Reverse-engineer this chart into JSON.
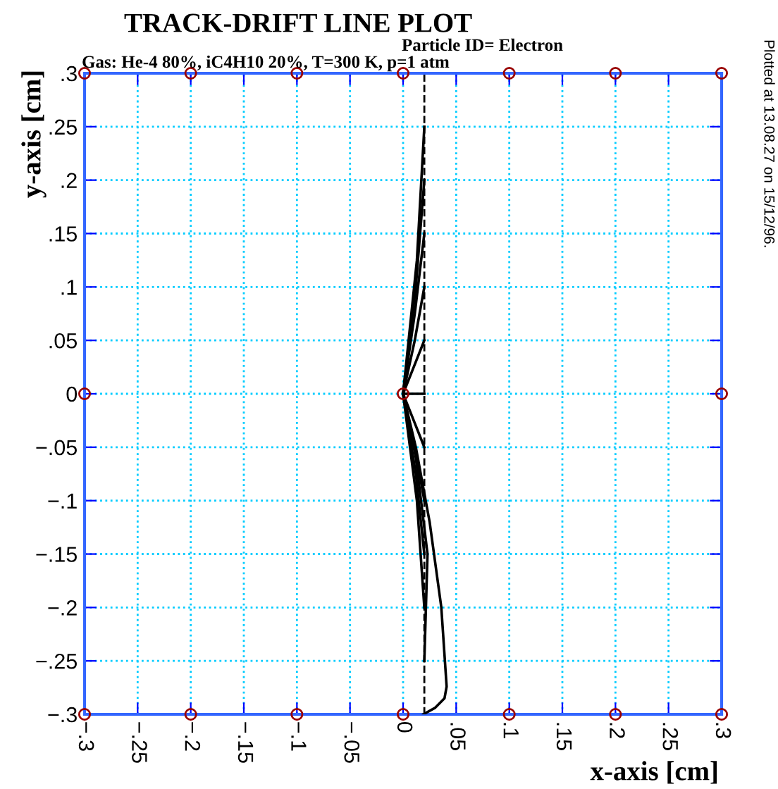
{
  "chart_data": {
    "type": "line",
    "title": "TRACK-DRIFT LINE PLOT",
    "subtitle": "Gas: He-4 80%, iC4H10 20%, T=300 K, p=1 atm",
    "xlabel": "x-axis [cm]",
    "ylabel": "y-axis [cm]",
    "annotations": [
      "Particle ID= Electron",
      "Plotted at 13.08.27 on 15/12/96."
    ],
    "xlim": [
      -0.3,
      0.3
    ],
    "ylim": [
      -0.3,
      0.3
    ],
    "xticks": [
      {
        "value": -0.3,
        "label": "−.3"
      },
      {
        "value": -0.25,
        "label": "−.25"
      },
      {
        "value": -0.2,
        "label": "−.2"
      },
      {
        "value": -0.15,
        "label": "−.15"
      },
      {
        "value": -0.1,
        "label": "−.1"
      },
      {
        "value": -0.05,
        "label": "−.05"
      },
      0,
      {
        "value": 0.05,
        "label": ".05"
      },
      {
        "value": 0.1,
        "label": ".1"
      },
      {
        "value": 0.15,
        "label": ".15"
      },
      {
        "value": 0.2,
        "label": ".2"
      },
      {
        "value": 0.25,
        "label": ".25"
      },
      {
        "value": 0.3,
        "label": ".3"
      }
    ],
    "yticks": [
      {
        "value": -0.3,
        "label": "−.3"
      },
      {
        "value": -0.25,
        "label": "−.25"
      },
      {
        "value": -0.2,
        "label": "−.2"
      },
      {
        "value": -0.15,
        "label": "−.15"
      },
      {
        "value": -0.1,
        "label": "−.1"
      },
      {
        "value": -0.05,
        "label": "−.05"
      },
      0,
      {
        "value": 0.05,
        "label": ".05"
      },
      {
        "value": 0.1,
        "label": ".1"
      },
      {
        "value": 0.15,
        "label": ".15"
      },
      {
        "value": 0.2,
        "label": ".2"
      },
      {
        "value": 0.25,
        "label": ".25"
      },
      {
        "value": 0.3,
        "label": ".3"
      }
    ],
    "grid": true,
    "ref_lines": [
      {
        "axis": "x",
        "value": 0.02,
        "color": "#000000",
        "line_style": "dashed"
      }
    ],
    "series": [
      {
        "color": "#000000",
        "x": [
          0.02,
          0.013,
          0
        ],
        "values": [
          0.25,
          0.125,
          0
        ]
      },
      {
        "color": "#000000",
        "x": [
          0.02,
          0.012,
          0
        ],
        "values": [
          0.2,
          0.1,
          0
        ]
      },
      {
        "color": "#000000",
        "x": [
          0.02,
          0.011,
          0
        ],
        "values": [
          0.15,
          0.075,
          0
        ]
      },
      {
        "color": "#000000",
        "x": [
          0.02,
          0.011,
          0
        ],
        "values": [
          0.1,
          0.05,
          0
        ]
      },
      {
        "color": "#000000",
        "x": [
          0.02,
          0.01,
          0
        ],
        "values": [
          0.05,
          0.025,
          0
        ]
      },
      {
        "color": "#000000",
        "x": [
          0.02,
          0
        ],
        "values": [
          0,
          0
        ]
      },
      {
        "color": "#000000",
        "x": [
          0.02,
          0.01,
          0
        ],
        "values": [
          -0.05,
          -0.025,
          0
        ]
      },
      {
        "color": "#000000",
        "x": [
          0.02,
          0.011,
          0
        ],
        "values": [
          -0.1,
          -0.05,
          0
        ]
      },
      {
        "color": "#000000",
        "x": [
          0.02,
          0.012,
          0
        ],
        "values": [
          -0.15,
          -0.075,
          0
        ]
      },
      {
        "color": "#000000",
        "x": [
          0.02,
          0.013,
          0
        ],
        "values": [
          -0.2,
          -0.1,
          0
        ]
      },
      {
        "color": "#000000",
        "x": [
          0.02,
          0.023,
          0.012,
          0
        ],
        "values": [
          -0.25,
          -0.15,
          -0.06,
          0
        ]
      },
      {
        "color": "#000000",
        "x": [
          0.019,
          0.03,
          0.039,
          0.041,
          0.036,
          0.025,
          0.012,
          0
        ],
        "values": [
          -0.3,
          -0.294,
          -0.285,
          -0.274,
          -0.2,
          -0.12,
          -0.05,
          0
        ]
      },
      {
        "type": "scatter",
        "color": "#990000",
        "marker": "circle",
        "x": [
          -0.3,
          -0.2,
          -0.1,
          0,
          0.1,
          0.2,
          0.3,
          -0.3,
          -0.2,
          -0.1,
          0,
          0.1,
          0.2,
          0.3,
          -0.3,
          0,
          0.3
        ],
        "values": [
          0.3,
          0.3,
          0.3,
          0.3,
          0.3,
          0.3,
          0.3,
          -0.3,
          -0.3,
          -0.3,
          -0.3,
          -0.3,
          -0.3,
          -0.3,
          0,
          0,
          0
        ]
      }
    ]
  }
}
